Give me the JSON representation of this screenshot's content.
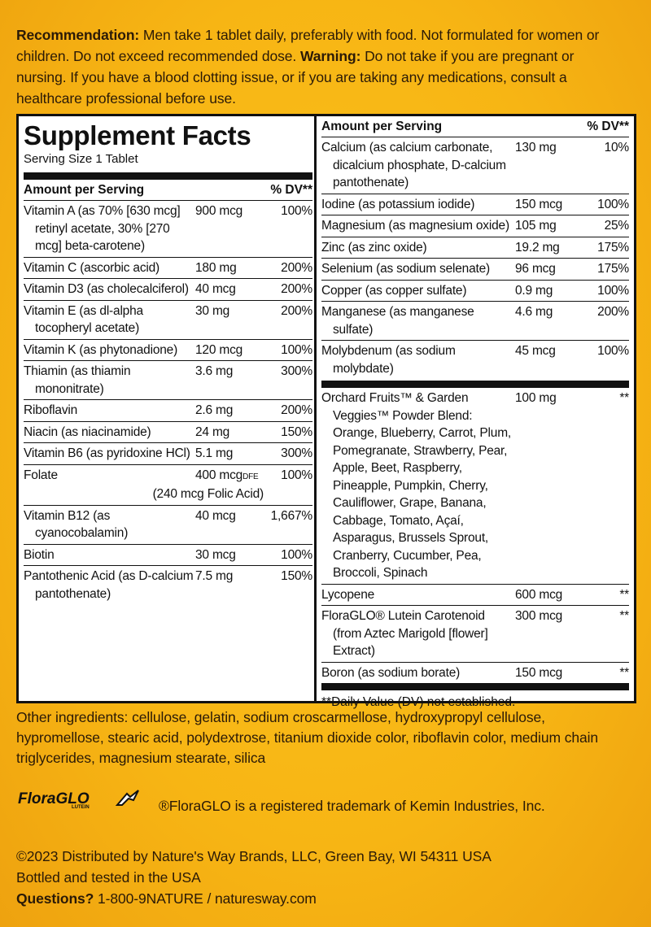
{
  "recommendation": {
    "label": "Recommendation:",
    "text": "Men take 1 tablet daily, preferably with food.  Not formulated for women or children. Do not exceed recommended dose.",
    "warning_label": "Warning:",
    "warning_text": "Do not take if you are pregnant or nursing. If you have a blood clotting issue, or if you are taking any medications, consult a healthcare professional before use."
  },
  "facts": {
    "title": "Supplement Facts",
    "serving_size": "Serving Size 1 Tablet",
    "header_amount": "Amount per Serving",
    "header_dv": "% DV**",
    "left_rows": [
      {
        "name": "Vitamin A (as 70% [630 mcg] retinyl acetate, 30% [270 mcg] beta-carotene)",
        "amount": "900 mcg",
        "dv": "100%"
      },
      {
        "name": "Vitamin C (ascorbic acid)",
        "amount": "180 mg",
        "dv": "200%"
      },
      {
        "name": "Vitamin D3 (as cholecalciferol)",
        "amount": "40 mcg",
        "dv": "200%"
      },
      {
        "name": "Vitamin E (as dl-alpha tocopheryl acetate)",
        "amount": "30 mg",
        "dv": "200%"
      },
      {
        "name": "Vitamin K (as phytonadione)",
        "amount": "120 mcg",
        "dv": "100%"
      },
      {
        "name": "Thiamin (as thiamin mononitrate)",
        "amount": "3.6 mg",
        "dv": "300%"
      },
      {
        "name": "Riboflavin",
        "amount": "2.6 mg",
        "dv": "200%"
      },
      {
        "name": "Niacin (as niacinamide)",
        "amount": "24 mg",
        "dv": "150%"
      },
      {
        "name": "Vitamin B6 (as pyridoxine HCl)",
        "amount": "5.1 mg",
        "dv": "300%"
      },
      {
        "name": "Folate",
        "amount": "400 mcg",
        "amount_note": "DFE",
        "note": "(240 mcg Folic Acid)",
        "dv": "100%"
      },
      {
        "name": "Vitamin B12 (as cyanocobalamin)",
        "amount": "40 mcg",
        "dv": "1,667%"
      },
      {
        "name": "Biotin",
        "amount": "30 mcg",
        "dv": "100%"
      },
      {
        "name": "Pantothenic Acid (as D-calcium pantothenate)",
        "amount": "7.5 mg",
        "dv": "150%"
      }
    ],
    "right_rows": [
      {
        "name": "Calcium (as calcium carbonate, dicalcium phosphate, D-calcium pantothenate)",
        "amount": "130 mg",
        "dv": "10%"
      },
      {
        "name": "Iodine (as potassium iodide)",
        "amount": "150 mcg",
        "dv": "100%"
      },
      {
        "name": "Magnesium (as magnesium oxide)",
        "amount": "105 mg",
        "dv": "25%"
      },
      {
        "name": "Zinc (as zinc oxide)",
        "amount": "19.2 mg",
        "dv": "175%"
      },
      {
        "name": "Selenium (as sodium selenate)",
        "amount": "96 mcg",
        "dv": "175%"
      },
      {
        "name": "Copper (as copper sulfate)",
        "amount": "0.9 mg",
        "dv": "100%"
      },
      {
        "name": "Manganese (as manganese sulfate)",
        "amount": "4.6 mg",
        "dv": "200%"
      },
      {
        "name": "Molybdenum (as sodium molybdate)",
        "amount": "45 mcg",
        "dv": "100%"
      }
    ],
    "other_rows": [
      {
        "name": "Orchard Fruits™ & Garden Veggies™ Powder Blend: Orange, Blueberry, Carrot, Plum, Pomegranate, Strawberry, Pear, Apple, Beet, Raspberry, Pineapple, Pumpkin, Cherry, Cauliflower, Grape, Banana, Cabbage, Tomato, Açaí, Asparagus, Brussels Sprout, Cranberry, Cucumber, Pea, Broccoli, Spinach",
        "amount": "100 mg",
        "dv": "**"
      },
      {
        "name": "Lycopene",
        "amount": "600 mcg",
        "dv": "**"
      },
      {
        "name": "FloraGLO® Lutein Carotenoid (from Aztec Marigold [flower] Extract)",
        "amount": "300 mcg",
        "dv": "**"
      },
      {
        "name": "Boron (as sodium borate)",
        "amount": "150 mcg",
        "dv": "**"
      }
    ],
    "footnote": "**Daily Value (DV) not established."
  },
  "other_ingredients": "Other ingredients: cellulose, gelatin, sodium croscarmellose, hydroxypropyl cellulose, hypromellose, stearic acid, polydextrose, titanium dioxide color, riboflavin color, medium chain triglycerides, magnesium stearate, silica",
  "trademark": {
    "logo": "FloraGLO",
    "logo_sub": "LUTEIN",
    "text": "®FloraGLO is a registered trademark of Kemin Industries, Inc."
  },
  "footer": {
    "copyright": "©2023 Distributed by Nature's Way Brands, LLC, Green Bay, WI 54311 USA",
    "bottled": "Bottled and tested in the USA",
    "questions_label": "Questions?",
    "questions_text": "1-800-9NATURE / naturesway.com"
  }
}
